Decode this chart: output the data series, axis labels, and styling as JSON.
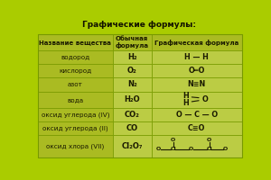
{
  "title": "Графические формулы:",
  "col0_header": "Название вещества",
  "col1_header": "Обычная\nформула",
  "col2_header": "Графическая формула",
  "row_names": [
    "водород",
    "кислород",
    "азот",
    "вода",
    "оксид углерода (IV)",
    "оксид углерода (II)",
    "оксид хлора (VII)"
  ],
  "row_formulas": [
    "H₂",
    "O₂",
    "N₂",
    "H₂O",
    "CO₂",
    "CO",
    "Cl₂O₇"
  ],
  "bg_outer": "#aacc00",
  "bg_header_col0": "#99bb00",
  "bg_data_col0": "#aacc22",
  "bg_col1": "#bbdd44",
  "bg_col2": "#bbdd44",
  "border_color": "#779900",
  "text_color": "#1a1a00",
  "title_color": "#111100",
  "fig_bg": "#aacc00",
  "title_fontsize": 6.5,
  "header_fontsize": 5.0,
  "cell_fontsize": 5.2,
  "formula_fontsize": 6.0,
  "graphic_fontsize": 5.8
}
